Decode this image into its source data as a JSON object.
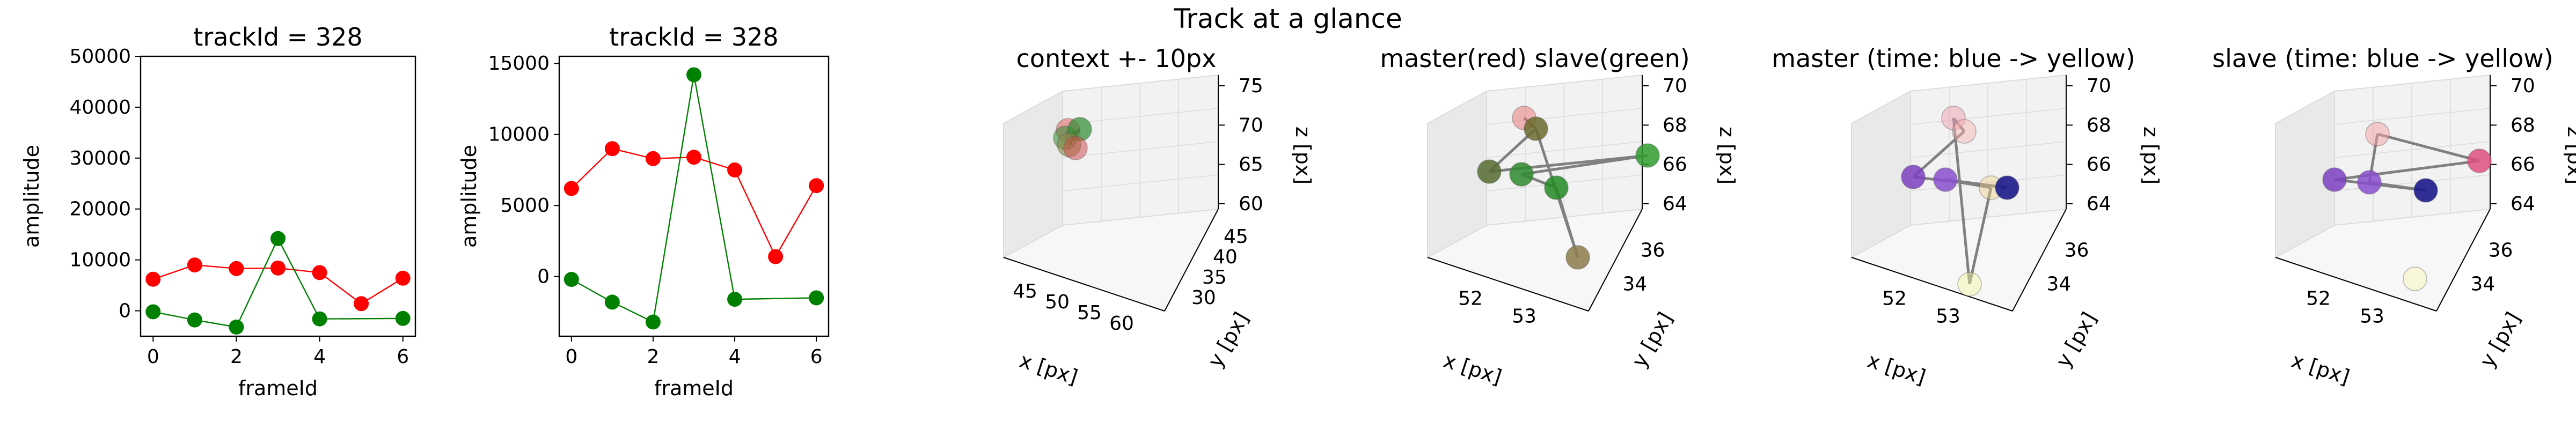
{
  "figure": {
    "suptitle": "Track at a glance"
  },
  "colors": {
    "master": "#ff0000",
    "slave": "#008000",
    "line3d": "#808080",
    "pane": "#f2f2f2",
    "grid": "#dcdcdc"
  },
  "chart_data": [
    {
      "type": "line",
      "title": "trackId = 328",
      "xlabel": "frameId",
      "ylabel": "amplitude",
      "xlim": [
        -0.3,
        6.3
      ],
      "ylim": [
        -5000,
        50000
      ],
      "xticks": [
        0,
        2,
        4,
        6
      ],
      "yticks": [
        0,
        10000,
        20000,
        30000,
        40000,
        50000
      ],
      "series": [
        {
          "color": "#ff0000",
          "x": [
            0,
            1,
            2,
            3,
            4,
            5,
            6
          ],
          "values": [
            6200,
            9000,
            8300,
            8400,
            7500,
            1400,
            6400
          ]
        },
        {
          "color": "#008000",
          "x": [
            0,
            1,
            2,
            3,
            4,
            6
          ],
          "values": [
            -200,
            -1800,
            -3200,
            14200,
            -1600,
            -1500
          ]
        }
      ]
    },
    {
      "type": "line",
      "title": "trackId = 328",
      "xlabel": "frameId",
      "ylabel": "amplitude",
      "xlim": [
        -0.3,
        6.3
      ],
      "ylim": [
        -4200,
        15500
      ],
      "xticks": [
        0,
        2,
        4,
        6
      ],
      "yticks": [
        0,
        5000,
        10000,
        15000
      ],
      "series": [
        {
          "color": "#ff0000",
          "x": [
            0,
            1,
            2,
            3,
            4,
            5,
            6
          ],
          "values": [
            6200,
            9000,
            8300,
            8400,
            7500,
            1400,
            6400
          ]
        },
        {
          "color": "#008000",
          "x": [
            0,
            1,
            2,
            3,
            4,
            6
          ],
          "values": [
            -200,
            -1800,
            -3200,
            14200,
            -1600,
            -1500
          ]
        }
      ]
    },
    {
      "type": "scatter3d",
      "title": "context +- 10px",
      "xlabel": "x [px]",
      "ylabel": "y [px]",
      "zlabel": "z [px]",
      "xticks": [
        "45",
        "50",
        "55",
        "60"
      ],
      "yticks": [
        "30",
        "35",
        "40",
        "45"
      ],
      "zticks": [
        "60",
        "65",
        "70",
        "75"
      ]
    },
    {
      "type": "scatter3d",
      "title": "master(red) slave(green)",
      "xlabel": "x [px]",
      "ylabel": "y [px]",
      "zlabel": "z [px]",
      "xticks": [
        "52",
        "53"
      ],
      "yticks": [
        "34",
        "36"
      ],
      "zticks": [
        "64",
        "66",
        "68",
        "70"
      ]
    },
    {
      "type": "scatter3d",
      "title": "master (time: blue -> yellow)",
      "xlabel": "x [px]",
      "ylabel": "y [px]",
      "zlabel": "z [px]",
      "xticks": [
        "52",
        "53"
      ],
      "yticks": [
        "34",
        "36"
      ],
      "zticks": [
        "64",
        "66",
        "68",
        "70"
      ]
    },
    {
      "type": "scatter3d",
      "title": "slave (time: blue -> yellow)",
      "xlabel": "x [px]",
      "ylabel": "y [px]",
      "zlabel": "z [px]",
      "xticks": [
        "52",
        "53"
      ],
      "yticks": [
        "34",
        "36"
      ],
      "zticks": [
        "64",
        "66",
        "68",
        "70"
      ]
    }
  ]
}
